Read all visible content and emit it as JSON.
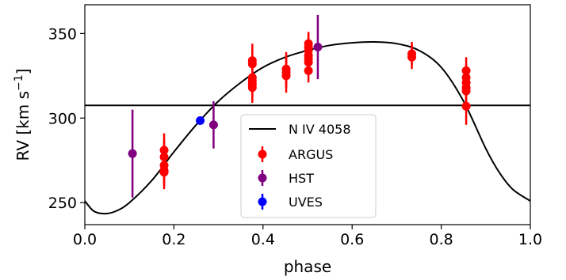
{
  "chart_data": {
    "type": "scatter",
    "xlabel": "phase",
    "ylabel": "RV [km s",
    "ylabel_sup": "−1",
    "ylabel_close": "]",
    "xlim": [
      0.0,
      1.0
    ],
    "ylim": [
      237,
      367
    ],
    "x_ticks": [
      "0.0",
      "0.2",
      "0.4",
      "0.6",
      "0.8",
      "1.0"
    ],
    "y_ticks": [
      "250",
      "300",
      "350"
    ],
    "grid": false,
    "legend_position": "lower-center",
    "systemic_velocity": 307.5,
    "curve": {
      "name": "N IV 4058",
      "color": "#000000",
      "phase": [
        0.0,
        0.02,
        0.045,
        0.07,
        0.1,
        0.15,
        0.2,
        0.25,
        0.3,
        0.35,
        0.4,
        0.45,
        0.5,
        0.55,
        0.6,
        0.65,
        0.7,
        0.75,
        0.8,
        0.85,
        0.9,
        0.93,
        0.96,
        1.0
      ],
      "rv": [
        251,
        245,
        243.5,
        245,
        250,
        263,
        280,
        296,
        310,
        321,
        330,
        336,
        340,
        343,
        344.5,
        345,
        344,
        340,
        330,
        310,
        282,
        268,
        258,
        251
      ]
    },
    "series": [
      {
        "name": "ARGUS",
        "color": "#ff0000",
        "points": [
          {
            "x": 0.178,
            "y": 281,
            "err": 10
          },
          {
            "x": 0.178,
            "y": 277,
            "err": 10
          },
          {
            "x": 0.178,
            "y": 272,
            "err": 9
          },
          {
            "x": 0.178,
            "y": 269,
            "err": 9
          },
          {
            "x": 0.178,
            "y": 268,
            "err": 10
          },
          {
            "x": 0.376,
            "y": 334,
            "err": 10
          },
          {
            "x": 0.376,
            "y": 332,
            "err": 10
          },
          {
            "x": 0.376,
            "y": 324,
            "err": 9
          },
          {
            "x": 0.376,
            "y": 322,
            "err": 9
          },
          {
            "x": 0.376,
            "y": 320,
            "err": 10
          },
          {
            "x": 0.376,
            "y": 318,
            "err": 9
          },
          {
            "x": 0.452,
            "y": 329,
            "err": 10
          },
          {
            "x": 0.452,
            "y": 327,
            "err": 9
          },
          {
            "x": 0.452,
            "y": 325,
            "err": 10
          },
          {
            "x": 0.502,
            "y": 344,
            "err": 7
          },
          {
            "x": 0.502,
            "y": 342,
            "err": 8
          },
          {
            "x": 0.502,
            "y": 340,
            "err": 8
          },
          {
            "x": 0.502,
            "y": 337,
            "err": 8
          },
          {
            "x": 0.502,
            "y": 335,
            "err": 8
          },
          {
            "x": 0.502,
            "y": 333,
            "err": 8
          },
          {
            "x": 0.502,
            "y": 328,
            "err": 7
          },
          {
            "x": 0.734,
            "y": 338,
            "err": 7
          },
          {
            "x": 0.734,
            "y": 336,
            "err": 7
          },
          {
            "x": 0.856,
            "y": 328,
            "err": 8
          },
          {
            "x": 0.856,
            "y": 324,
            "err": 8
          },
          {
            "x": 0.856,
            "y": 321,
            "err": 8
          },
          {
            "x": 0.856,
            "y": 318,
            "err": 8
          },
          {
            "x": 0.856,
            "y": 316,
            "err": 8
          },
          {
            "x": 0.856,
            "y": 307,
            "err": 11
          }
        ]
      },
      {
        "name": "HST",
        "color": "#800080",
        "points": [
          {
            "x": 0.107,
            "y": 279,
            "err": 26
          },
          {
            "x": 0.289,
            "y": 296,
            "err": 14
          },
          {
            "x": 0.523,
            "y": 342,
            "err": 19
          }
        ]
      },
      {
        "name": "UVES",
        "color": "#0000ff",
        "points": [
          {
            "x": 0.259,
            "y": 298.5,
            "err": 1
          }
        ]
      }
    ]
  }
}
